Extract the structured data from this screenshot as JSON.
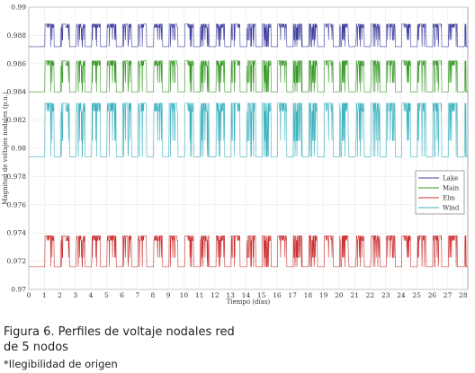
{
  "caption": {
    "line1": "Figura 6. Perfiles de voltaje nodales red",
    "line2": "de 5 nodos",
    "note": "*Ilegibilidad de origen"
  },
  "chart_data": {
    "type": "line",
    "title": "",
    "xlabel": "Tiempo (días)",
    "ylabel": "Magnitud de voltajes nodales (p.u.)",
    "xlim": [
      0,
      28.3
    ],
    "ylim": [
      0.97,
      0.99
    ],
    "x_ticks": [
      0,
      1,
      2,
      3,
      4,
      5,
      6,
      7,
      8,
      9,
      10,
      11,
      12,
      13,
      14,
      15,
      16,
      17,
      18,
      19,
      20,
      21,
      22,
      23,
      24,
      25,
      26,
      27,
      28
    ],
    "y_ticks": [
      0.97,
      0.972,
      0.974,
      0.976,
      0.978,
      0.98,
      0.982,
      0.984,
      0.986,
      0.988,
      0.99
    ],
    "grid": true,
    "legend_position": "right",
    "series": [
      {
        "name": "Lake",
        "color": "#3f3fa0",
        "low": 0.9872,
        "high": 0.9888
      },
      {
        "name": "Main",
        "color": "#3a9a2a",
        "low": 0.984,
        "high": 0.9862
      },
      {
        "name": "Elm",
        "color": "#cc3333",
        "low": 0.9716,
        "high": 0.9738
      },
      {
        "name": "Wind",
        "color": "#3fb3c0",
        "low": 0.9794,
        "high": 0.9832
      }
    ]
  }
}
